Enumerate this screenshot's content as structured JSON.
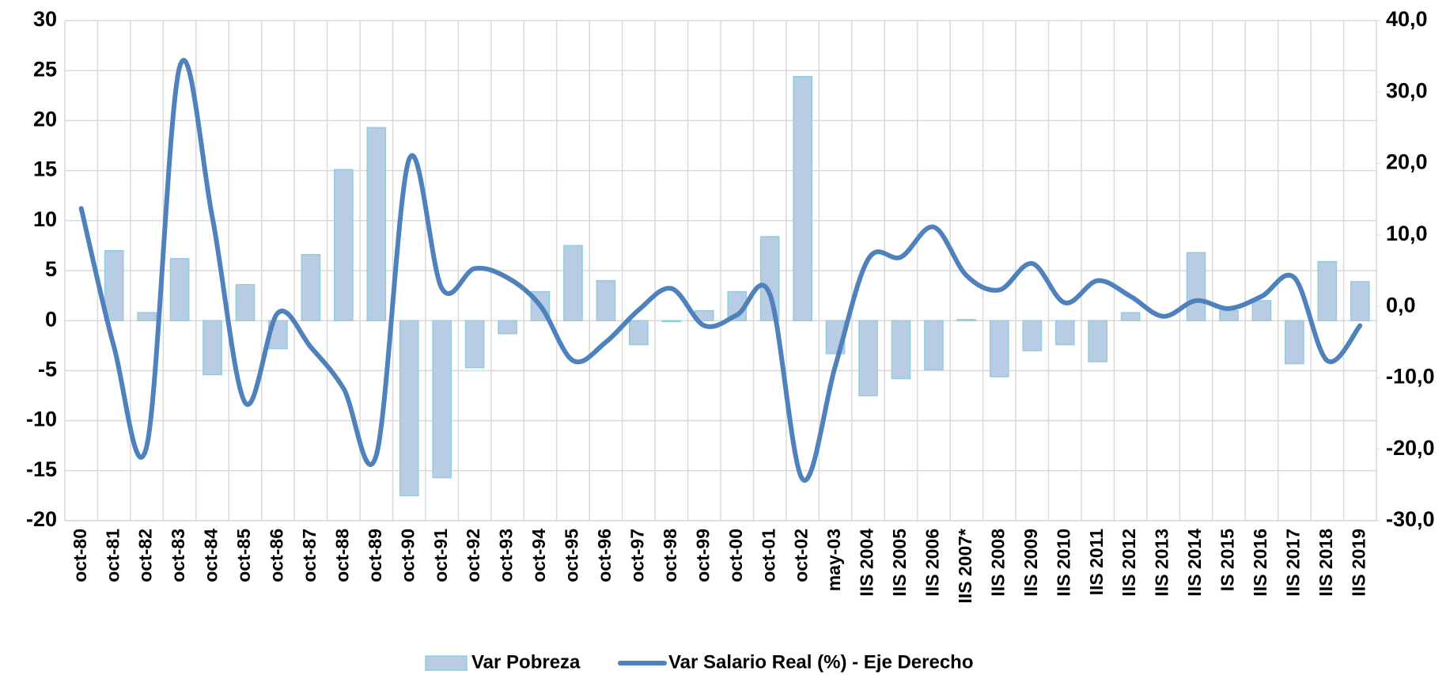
{
  "chart_data": {
    "type": "bar-line",
    "categories": [
      "oct-80",
      "oct-81",
      "oct-82",
      "oct-83",
      "oct-84",
      "oct-85",
      "oct-86",
      "oct-87",
      "oct-88",
      "oct-89",
      "oct-90",
      "oct-91",
      "oct-92",
      "oct-93",
      "oct-94",
      "oct-95",
      "oct-96",
      "oct-97",
      "oct-98",
      "oct-99",
      "oct-00",
      "oct-01",
      "oct-02",
      "may-03",
      "IIS 2004",
      "IIS 2005",
      "IIS 2006",
      "IIS 2007*",
      "IIS 2008",
      "IIS 2009",
      "IIS 2010",
      "IIS 2011",
      "IIS 2012",
      "IIS 2013",
      "IIS 2014",
      "IS 2015",
      "IIS 2016",
      "IIS 2017",
      "IIS 2018",
      "IIS 2019"
    ],
    "series": [
      {
        "name": "Var Pobreza",
        "type": "bar",
        "color": "#b8cce4",
        "values": [
          null,
          7.0,
          0.8,
          6.2,
          -5.4,
          3.6,
          -2.8,
          6.6,
          15.1,
          19.3,
          -17.5,
          -15.7,
          -4.7,
          -1.3,
          2.9,
          7.5,
          4.0,
          -2.4,
          -0.1,
          1.0,
          2.9,
          8.4,
          24.4,
          -3.3,
          -7.5,
          -5.8,
          -4.9,
          0.1,
          -5.6,
          -3.0,
          -2.4,
          -4.1,
          0.8,
          0.0,
          6.8,
          1.0,
          2.0,
          -4.3,
          5.9,
          3.9
        ]
      },
      {
        "name": "Var Salario Real (%) - Eje Derecho",
        "type": "line",
        "axis": "y2",
        "color": "#4f81bd",
        "values": [
          13.7,
          -5.7,
          -19.5,
          33.5,
          12.4,
          -13.5,
          -0.9,
          -5.7,
          -11.5,
          -20.8,
          20.6,
          2.5,
          5.3,
          4.0,
          0.1,
          -7.6,
          -5.0,
          -0.5,
          2.5,
          -2.7,
          -1.2,
          1.7,
          -24.2,
          -8.3,
          6.6,
          6.9,
          11.1,
          4.3,
          2.3,
          6.0,
          0.5,
          3.6,
          1.4,
          -1.4,
          0.8,
          -0.3,
          1.4,
          4.0,
          -7.6,
          -2.7
        ]
      }
    ],
    "ylim": [
      -20,
      30
    ],
    "yticks": [
      -20,
      -15,
      -10,
      -5,
      0,
      5,
      10,
      15,
      20,
      25,
      30
    ],
    "y2lim": [
      -30,
      40
    ],
    "y2ticks": [
      {
        "value": -30,
        "label": "-30,0"
      },
      {
        "value": -20,
        "label": "-20,0"
      },
      {
        "value": -10,
        "label": "-10,0"
      },
      {
        "value": 0,
        "label": "0,0"
      },
      {
        "value": 10,
        "label": "10,0"
      },
      {
        "value": 20,
        "label": "20,0"
      },
      {
        "value": 30,
        "label": "30,0"
      },
      {
        "value": 40,
        "label": "40,0"
      }
    ],
    "grid": true,
    "legend": "bottom"
  }
}
